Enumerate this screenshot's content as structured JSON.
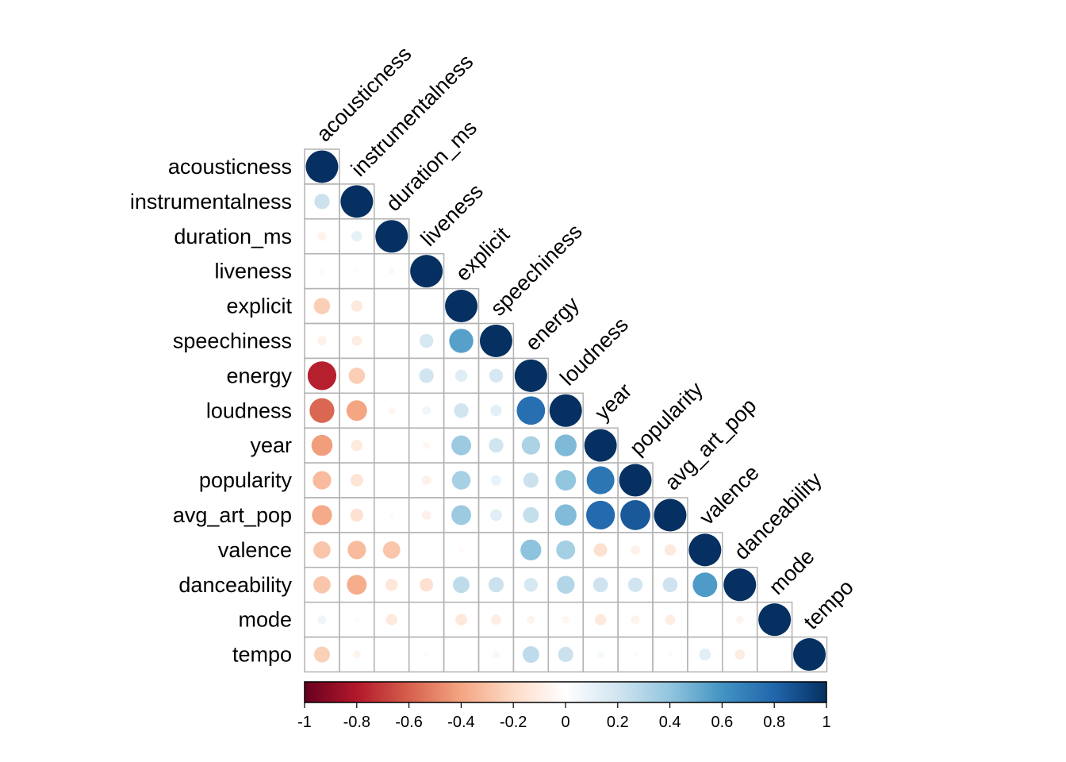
{
  "chart_data": {
    "type": "heatmap",
    "style": "correlation matrix, lower triangle, circles sized by |r|",
    "variables": [
      "acousticness",
      "instrumentalness",
      "duration_ms",
      "liveness",
      "explicit",
      "speechiness",
      "energy",
      "loudness",
      "year",
      "popularity",
      "avg_art_pop",
      "valence",
      "danceability",
      "mode",
      "tempo"
    ],
    "matrix": [
      [
        1.0
      ],
      [
        0.22,
        1.0
      ],
      [
        -0.07,
        0.11,
        1.0
      ],
      [
        -0.03,
        -0.02,
        0.04,
        1.0
      ],
      [
        -0.25,
        -0.12,
        0.01,
        0.01,
        1.0
      ],
      [
        -0.08,
        -0.1,
        0.0,
        0.18,
        0.55,
        1.0
      ],
      [
        -0.78,
        -0.25,
        0.0,
        0.2,
        0.14,
        0.18,
        1.0
      ],
      [
        -0.58,
        -0.4,
        -0.05,
        0.07,
        0.2,
        0.12,
        0.76,
        1.0
      ],
      [
        -0.42,
        -0.12,
        -0.01,
        -0.05,
        0.37,
        0.2,
        0.32,
        0.45,
        1.0
      ],
      [
        -0.32,
        -0.15,
        0.0,
        -0.08,
        0.33,
        0.1,
        0.22,
        0.4,
        0.73,
        1.0
      ],
      [
        -0.38,
        -0.16,
        -0.03,
        -0.08,
        0.37,
        0.13,
        0.24,
        0.44,
        0.78,
        0.85,
        1.0
      ],
      [
        -0.28,
        -0.32,
        -0.28,
        0.0,
        -0.03,
        -0.01,
        0.41,
        0.34,
        -0.17,
        -0.08,
        -0.12,
        1.0
      ],
      [
        -0.28,
        -0.37,
        -0.14,
        -0.17,
        0.26,
        0.22,
        0.18,
        0.3,
        0.21,
        0.2,
        0.21,
        0.57,
        1.0
      ],
      [
        0.07,
        -0.03,
        -0.12,
        0.0,
        -0.13,
        -0.1,
        -0.06,
        -0.05,
        -0.12,
        -0.07,
        -0.1,
        -0.01,
        -0.06,
        1.0
      ],
      [
        -0.24,
        -0.06,
        -0.01,
        0.02,
        0.0,
        0.05,
        0.26,
        0.22,
        0.05,
        0.02,
        0.03,
        0.13,
        -0.1,
        0.0,
        1.0
      ]
    ],
    "colorbar": {
      "ticks": [
        "-1",
        "-0.8",
        "-0.6",
        "-0.4",
        "-0.2",
        "0",
        "0.2",
        "0.4",
        "0.6",
        "0.8",
        "1"
      ],
      "min": -1,
      "max": 1,
      "colors": [
        "#67001F",
        "#B2182B",
        "#D6604D",
        "#F4A582",
        "#FDDBC7",
        "#FFFFFF",
        "#D1E5F0",
        "#92C5DE",
        "#4393C3",
        "#2166AC",
        "#053061"
      ]
    }
  }
}
